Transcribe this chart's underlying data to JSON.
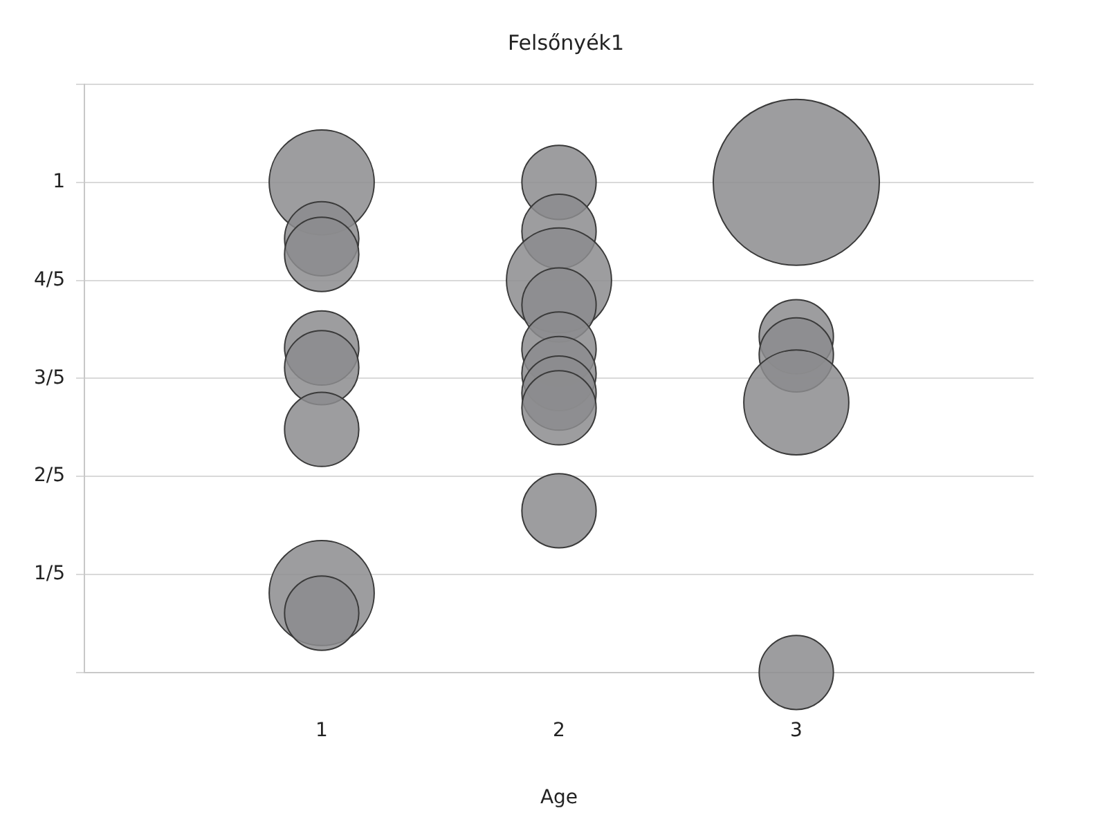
{
  "chart_data": {
    "type": "bubble",
    "title": "Felsőnyék1",
    "xlabel": "Age",
    "x": [
      1,
      1,
      1,
      1,
      1,
      1,
      1,
      1,
      2,
      2,
      2,
      2,
      2,
      2,
      2,
      2,
      2,
      3,
      3,
      3,
      3,
      3
    ],
    "values": [
      1,
      0.885,
      0.853,
      0.662,
      0.622,
      0.496,
      0.162,
      0.121,
      1,
      0.9,
      0.8,
      0.75,
      0.66,
      0.61,
      0.57,
      0.54,
      0.33,
      1,
      0.685,
      0.648,
      0.551,
      0
    ],
    "sizes": [
      0.4,
      0.2,
      0.2,
      0.2,
      0.2,
      0.2,
      0.4,
      0.2,
      0.2,
      0.2,
      0.4,
      0.2,
      0.2,
      0.2,
      0.2,
      0.2,
      0.2,
      1,
      0.2,
      0.2,
      0.4,
      0.2
    ],
    "color": "#8c8c8e",
    "xlim": [
      0,
      4
    ],
    "xticks": [
      1,
      2,
      3
    ],
    "ylim": [
      0,
      1.2
    ],
    "yticks": [
      {
        "value": 0,
        "label": null
      },
      {
        "value": 0.2,
        "label": "1/5"
      },
      {
        "value": 0.4,
        "label": "2/5"
      },
      {
        "value": 0.6,
        "label": "3/5"
      },
      {
        "value": 0.8,
        "label": "4/5"
      },
      {
        "value": 1,
        "label": "1"
      },
      {
        "value": 1.2,
        "label": null
      }
    ],
    "grid": "y",
    "legend": false
  }
}
